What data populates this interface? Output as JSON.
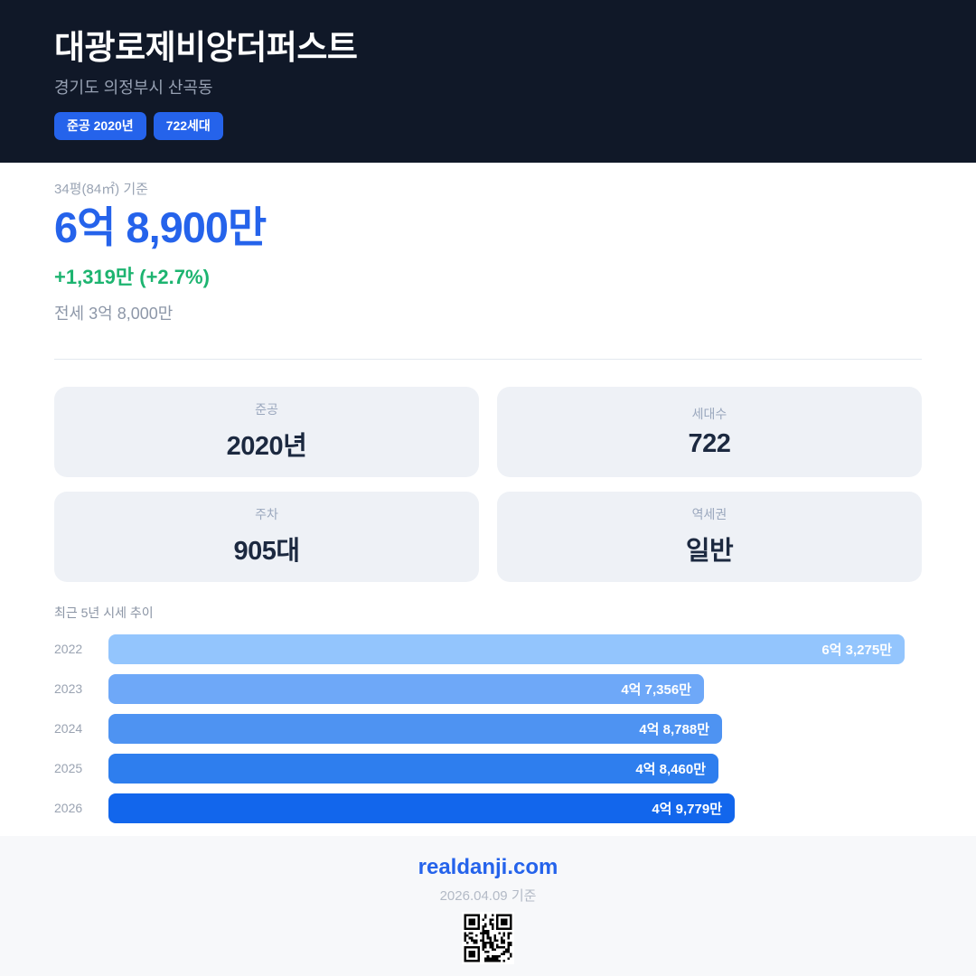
{
  "header": {
    "title": "대광로제비앙더퍼스트",
    "location": "경기도 의정부시 산곡동",
    "badges": [
      {
        "label": "준공 2020년"
      },
      {
        "label": "722세대"
      }
    ]
  },
  "price": {
    "basis": "34평(84㎡) 기준",
    "current": "6억 8,900만",
    "change": "+1,319만 (+2.7%)",
    "jeonse": "전세 3억 8,000만"
  },
  "stats": [
    {
      "label": "준공",
      "value": "2020년"
    },
    {
      "label": "세대수",
      "value": "722"
    },
    {
      "label": "주차",
      "value": "905대"
    },
    {
      "label": "역세권",
      "value": "일반"
    }
  ],
  "chart_data": {
    "type": "bar",
    "orientation": "horizontal",
    "title": "최근 5년 시세 추이",
    "categories": [
      "2022",
      "2023",
      "2024",
      "2025",
      "2026"
    ],
    "values": [
      63275,
      47356,
      48788,
      48460,
      49779
    ],
    "unit": "만원",
    "labels": [
      "6억 3,275만",
      "4억 7,356만",
      "4억 8,788만",
      "4억 8,460만",
      "4억 9,779만"
    ],
    "bar_colors": [
      "#93c5fd",
      "#6ea8f8",
      "#4e93f2",
      "#2e7eee",
      "#1266ec"
    ],
    "xlim": [
      0,
      63275
    ],
    "grid": false,
    "legend": false,
    "value_label_position": "inside-end"
  },
  "footer": {
    "site": "realdanji.com",
    "date": "2026.04.09 기준",
    "qr_icon": "qr-code"
  },
  "colors": {
    "header_bg": "#101828",
    "accent_blue": "#2563eb",
    "price_blue": "#2563eb",
    "change_green": "#1db470",
    "card_bg": "#eef1f6",
    "card_value_text": "#1c2940",
    "muted_text": "#9aa4b4",
    "footer_bg": "#f7f8fa"
  }
}
